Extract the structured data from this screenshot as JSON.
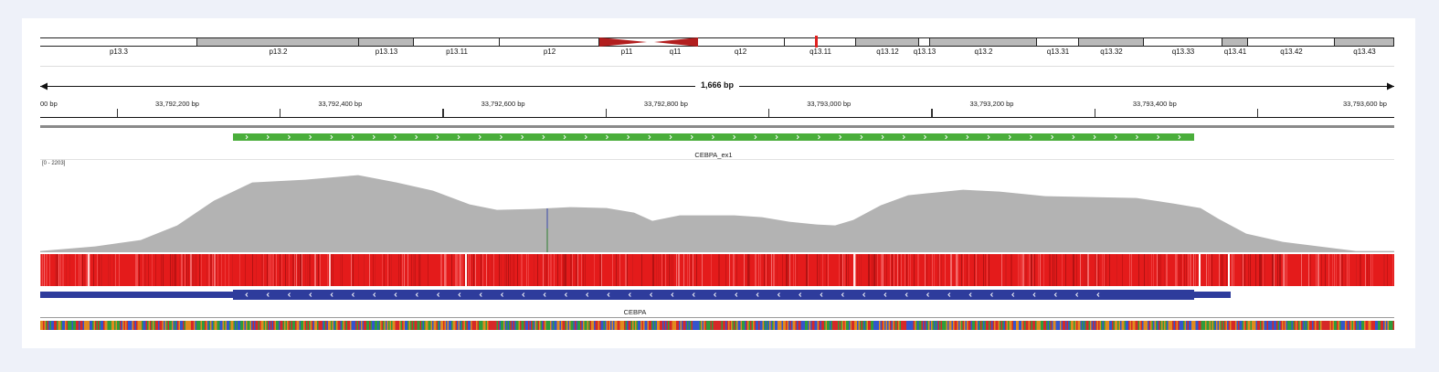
{
  "colors": {
    "feature_green": "#4aae3b",
    "coverage_gray": "#b3b3b3",
    "heatmap_red": "#e41b1b",
    "gene_blue": "#2e3c9c",
    "centromere_red": "#b21e1e"
  },
  "ideogram": {
    "bands": [
      {
        "label": "p13.3",
        "stain": "light"
      },
      {
        "label": "p13.2",
        "stain": "gray"
      },
      {
        "label": "p13.13",
        "stain": "gray"
      },
      {
        "label": "p13.11",
        "stain": "light"
      },
      {
        "label": "p12",
        "stain": "light"
      },
      {
        "label": "p11",
        "stain": "centromere"
      },
      {
        "label": "q11",
        "stain": "centromere"
      },
      {
        "label": "q12",
        "stain": "light"
      },
      {
        "label": "q13.11",
        "stain": "light"
      },
      {
        "label": "q13.12",
        "stain": "gray"
      },
      {
        "label": "q13.13",
        "stain": "light"
      },
      {
        "label": "q13.2",
        "stain": "gray"
      },
      {
        "label": "q13.31",
        "stain": "light"
      },
      {
        "label": "q13.32",
        "stain": "gray"
      },
      {
        "label": "q13.33",
        "stain": "light"
      },
      {
        "label": "q13.41",
        "stain": "gray"
      },
      {
        "label": "q13.42",
        "stain": "light"
      },
      {
        "label": "q13.43",
        "stain": "gray"
      }
    ]
  },
  "ruler": {
    "span_label": "1,666 bp",
    "ticks": [
      "00 bp",
      "33,792,200 bp",
      "33,792,400 bp",
      "33,792,600 bp",
      "33,792,800 bp",
      "33,793,000 bp",
      "33,793,200 bp",
      "33,793,400 bp",
      "33,793,600 bp"
    ]
  },
  "feature_track": {
    "name": "CEBPA_ex1",
    "strand": "+"
  },
  "coverage_track": {
    "range_label": "[0 - 2203]"
  },
  "gene_track": {
    "name": "CEBPA",
    "strand": "-"
  },
  "icons": {
    "arrow_left": "arrow-left-icon",
    "arrow_right": "arrow-right-icon"
  }
}
